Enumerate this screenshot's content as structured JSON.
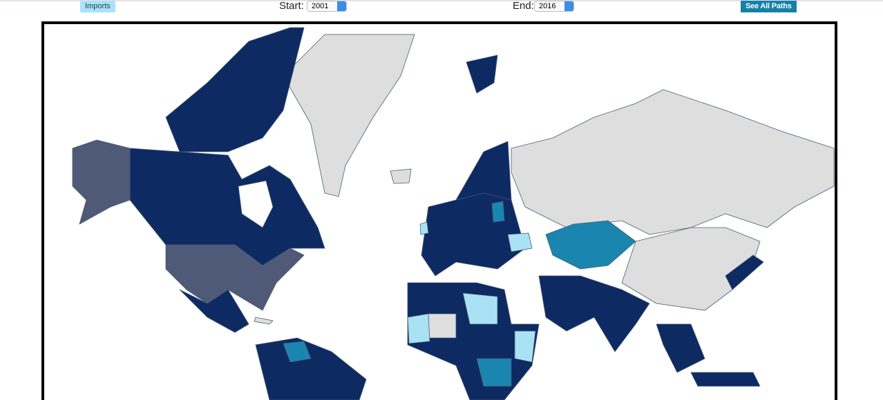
{
  "toolbar": {
    "mode_button": "Imports",
    "start_label": "Start:",
    "start_value": "2001",
    "end_label": "End:",
    "end_value": "2016",
    "paths_button": "See All Paths"
  }
}
